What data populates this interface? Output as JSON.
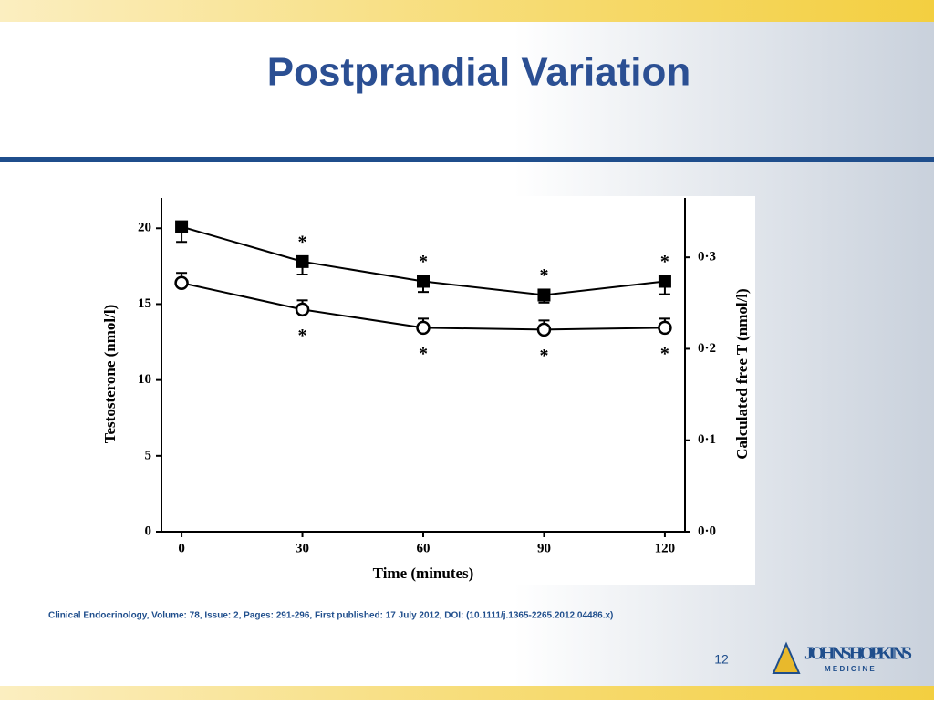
{
  "title": "Postprandial Variation",
  "citation": "Clinical Endocrinology, Volume: 78, Issue: 2, Pages: 291-296, First published: 17 July 2012, DOI: (10.1111/j.1365-2265.2012.04486.x)",
  "page_number": "12",
  "logo": {
    "name": "JOHNS HOPKINS",
    "subtitle": "M E D I C I N E"
  },
  "chart_data": {
    "type": "line",
    "xlabel": "Time (minutes)",
    "ylabel": "Testosterone (nmol/l)",
    "y2label": "Calculated free T (nmol/l)",
    "x": [
      0,
      30,
      60,
      90,
      120
    ],
    "xlim": [
      -5,
      125
    ],
    "xticks": [
      0,
      30,
      60,
      90,
      120
    ],
    "ylim": [
      0,
      22
    ],
    "yticks": [
      0,
      5,
      10,
      15,
      20
    ],
    "y2lim": [
      0,
      0.365
    ],
    "y2ticks": [
      {
        "value": 0,
        "label": "0·0"
      },
      {
        "value": 0.1,
        "label": "0·1"
      },
      {
        "value": 0.2,
        "label": "0·2"
      },
      {
        "value": 0.3,
        "label": "0·3"
      }
    ],
    "series": [
      {
        "marker": "square",
        "color": "#000000",
        "values": [
          20.1,
          17.8,
          16.5,
          15.6,
          16.5
        ],
        "errors": [
          1.0,
          0.85,
          0.7,
          0.5,
          0.85
        ],
        "error_direction": "down",
        "labels": [
          null,
          "*",
          "*",
          "*",
          "*"
        ],
        "label_position": "above"
      },
      {
        "marker": "circle",
        "color": "#000000",
        "axis": "y2",
        "values": [
          0.272,
          0.243,
          0.223,
          0.221,
          0.223
        ],
        "errors": [
          0.011,
          0.01,
          0.01,
          0.01,
          0.01
        ],
        "error_direction": "up",
        "labels": [
          null,
          "*",
          "*",
          "*",
          "*"
        ],
        "label_position": "below"
      }
    ]
  }
}
